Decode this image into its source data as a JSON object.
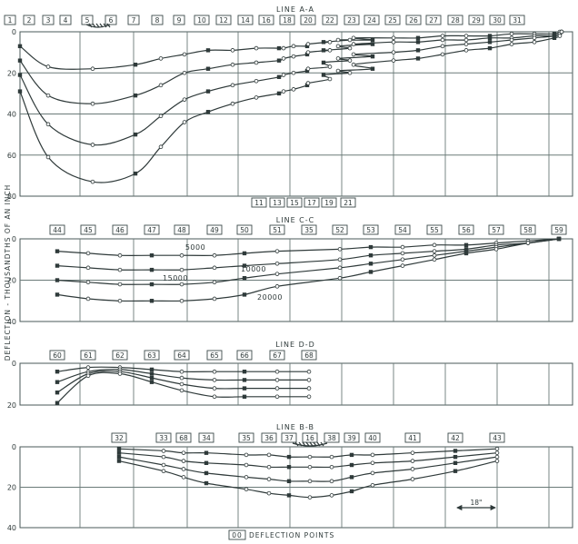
{
  "ylabel": "DEFLECTION - THOUSANDTHS OF AN INCH",
  "footer": {
    "box": "00",
    "text": "DEFLECTION POINTS"
  },
  "dimension_label": "18\"",
  "chart_data": [
    {
      "type": "line",
      "title": "LINE A-A",
      "ylim": [
        0,
        80
      ],
      "yticks": [
        "0",
        "20",
        "40",
        "60",
        "80"
      ],
      "top_points": [
        "1",
        "2",
        "3",
        "4",
        "5",
        "6",
        "7",
        "8",
        "9",
        "10",
        "12",
        "14",
        "16",
        "18",
        "20",
        "22",
        "23",
        "24",
        "25",
        "26",
        "27",
        "28",
        "29",
        "30",
        "31"
      ],
      "bottom_points": [
        "11",
        "13",
        "15",
        "17",
        "19",
        "21"
      ],
      "series": [
        {
          "x": [
            1,
            2,
            3.5,
            5,
            6,
            7,
            8,
            9,
            10,
            11,
            12,
            13,
            14,
            15,
            16,
            17,
            18,
            19,
            20,
            21,
            22,
            23,
            24,
            25,
            26,
            27,
            28,
            29,
            30,
            31
          ],
          "values": [
            7,
            17,
            18,
            16,
            13,
            11,
            9,
            9,
            8,
            8,
            8,
            7,
            7,
            6,
            5,
            5,
            4,
            4,
            4,
            3,
            3,
            3,
            2,
            2,
            2,
            1,
            1,
            1,
            0,
            0
          ]
        },
        {
          "x": [
            1,
            2,
            3.5,
            5,
            6,
            7,
            8,
            9,
            10,
            11,
            12,
            13,
            14,
            15,
            16,
            17,
            18,
            19,
            20,
            21,
            22,
            23,
            24,
            25,
            26,
            27,
            28,
            29,
            30,
            31
          ],
          "values": [
            14,
            31,
            35,
            31,
            26,
            20,
            18,
            16,
            15,
            14,
            13,
            12,
            11,
            10,
            9,
            9,
            8,
            7,
            6,
            6,
            5,
            5,
            4,
            4,
            3,
            3,
            2,
            2,
            1,
            0
          ]
        },
        {
          "x": [
            1,
            2,
            3.5,
            5,
            6,
            7,
            8,
            9,
            10,
            11,
            12,
            13,
            14,
            15,
            16,
            17,
            18,
            19,
            20,
            21,
            22,
            23,
            24,
            25,
            26,
            27,
            28,
            29,
            30,
            31
          ],
          "values": [
            21,
            45,
            55,
            50,
            41,
            33,
            29,
            26,
            24,
            22,
            21,
            20,
            19,
            18,
            17,
            15,
            14,
            13,
            12,
            11,
            10,
            9,
            7,
            6,
            5,
            4,
            3,
            2,
            1,
            0
          ]
        },
        {
          "x": [
            1,
            2,
            3.5,
            5,
            6,
            7,
            8,
            9,
            10,
            11,
            12,
            13,
            14,
            15,
            16,
            17,
            18,
            19,
            20,
            21,
            22,
            23,
            24,
            25,
            26,
            27,
            28,
            29,
            30,
            31
          ],
          "values": [
            29,
            61,
            73,
            69,
            56,
            44,
            39,
            35,
            32,
            30,
            29,
            28,
            26,
            25,
            23,
            21,
            20,
            19,
            18,
            16,
            14,
            13,
            11,
            9,
            8,
            6,
            5,
            3,
            2,
            0
          ]
        }
      ]
    },
    {
      "type": "line",
      "title": "LINE C-C",
      "ylim": [
        0,
        40
      ],
      "yticks": [
        "0",
        "20",
        "40"
      ],
      "top_points": [
        "44",
        "45",
        "46",
        "47",
        "48",
        "49",
        "50",
        "51",
        "35",
        "52",
        "53",
        "54",
        "55",
        "56",
        "57",
        "58",
        "59"
      ],
      "annotations": [
        "5000",
        "10000",
        "15000",
        "20000"
      ],
      "series": [
        {
          "name": "5000",
          "x": [
            44,
            45,
            46,
            47,
            48,
            49,
            50,
            51,
            52,
            53,
            54,
            55,
            56,
            57,
            58,
            59
          ],
          "values": [
            6,
            7,
            8,
            8,
            8,
            8,
            7,
            6,
            5,
            4,
            4,
            3,
            3,
            2,
            1,
            0
          ]
        },
        {
          "name": "10000",
          "x": [
            44,
            45,
            46,
            47,
            48,
            49,
            50,
            51,
            52,
            53,
            54,
            55,
            56,
            57,
            58,
            59
          ],
          "values": [
            13,
            14,
            15,
            15,
            15,
            14,
            13,
            12,
            10,
            8,
            7,
            6,
            5,
            3,
            2,
            0
          ]
        },
        {
          "name": "15000",
          "x": [
            44,
            45,
            46,
            47,
            48,
            49,
            50,
            51,
            52,
            53,
            54,
            55,
            56,
            57,
            58,
            59
          ],
          "values": [
            20,
            21,
            22,
            22,
            22,
            21,
            19,
            17,
            14,
            12,
            10,
            8,
            6,
            4,
            2,
            0
          ]
        },
        {
          "name": "20000",
          "x": [
            44,
            45,
            46,
            47,
            48,
            49,
            50,
            51,
            52,
            53,
            54,
            55,
            56,
            57,
            58,
            59
          ],
          "values": [
            27,
            29,
            30,
            30,
            30,
            29,
            27,
            23,
            19,
            16,
            13,
            10,
            7,
            5,
            2,
            0
          ]
        }
      ]
    },
    {
      "type": "line",
      "title": "LINE D-D",
      "ylim": [
        0,
        20
      ],
      "yticks": [
        "0",
        "20"
      ],
      "top_points": [
        "60",
        "61",
        "62",
        "63",
        "64",
        "65",
        "66",
        "67",
        "68"
      ],
      "series": [
        {
          "x": [
            60,
            61,
            62,
            63,
            64,
            65,
            66,
            67,
            68
          ],
          "values": [
            4,
            2,
            2,
            3,
            4,
            4,
            4,
            4,
            4
          ]
        },
        {
          "x": [
            60,
            61,
            62,
            63,
            64,
            65,
            66,
            67,
            68
          ],
          "values": [
            9,
            4,
            3,
            5,
            7,
            8,
            8,
            8,
            8
          ]
        },
        {
          "x": [
            60,
            61,
            62,
            63,
            64,
            65,
            66,
            67,
            68
          ],
          "values": [
            14,
            5,
            4,
            7,
            10,
            12,
            12,
            12,
            12
          ]
        },
        {
          "x": [
            60,
            61,
            62,
            63,
            64,
            65,
            66,
            67,
            68
          ],
          "values": [
            19,
            6,
            5,
            9,
            13,
            16,
            16,
            16,
            16
          ]
        }
      ]
    },
    {
      "type": "line",
      "title": "LINE B-B",
      "ylim": [
        0,
        40
      ],
      "yticks": [
        "0",
        "20",
        "40"
      ],
      "top_points": [
        "32",
        "33",
        "68",
        "34",
        "35",
        "36",
        "37",
        "16",
        "38",
        "39",
        "40",
        "41",
        "42",
        "43"
      ],
      "series": [
        {
          "x": [
            32,
            33,
            68,
            34,
            35,
            36,
            37,
            16,
            38,
            39,
            40,
            41,
            42,
            43
          ],
          "values": [
            1,
            2,
            3,
            3,
            4,
            4,
            5,
            5,
            5,
            4,
            4,
            3,
            2,
            1
          ]
        },
        {
          "x": [
            32,
            33,
            68,
            34,
            35,
            36,
            37,
            16,
            38,
            39,
            40,
            41,
            42,
            43
          ],
          "values": [
            3,
            5,
            7,
            8,
            9,
            10,
            10,
            10,
            10,
            9,
            8,
            7,
            5,
            3
          ]
        },
        {
          "x": [
            32,
            33,
            68,
            34,
            35,
            36,
            37,
            16,
            38,
            39,
            40,
            41,
            42,
            43
          ],
          "values": [
            5,
            9,
            11,
            13,
            15,
            16,
            17,
            17,
            17,
            15,
            13,
            11,
            8,
            5
          ]
        },
        {
          "x": [
            32,
            33,
            68,
            34,
            35,
            36,
            37,
            16,
            38,
            39,
            40,
            41,
            42,
            43
          ],
          "values": [
            7,
            12,
            15,
            18,
            21,
            23,
            24,
            25,
            24,
            22,
            19,
            16,
            12,
            7
          ]
        }
      ]
    }
  ]
}
